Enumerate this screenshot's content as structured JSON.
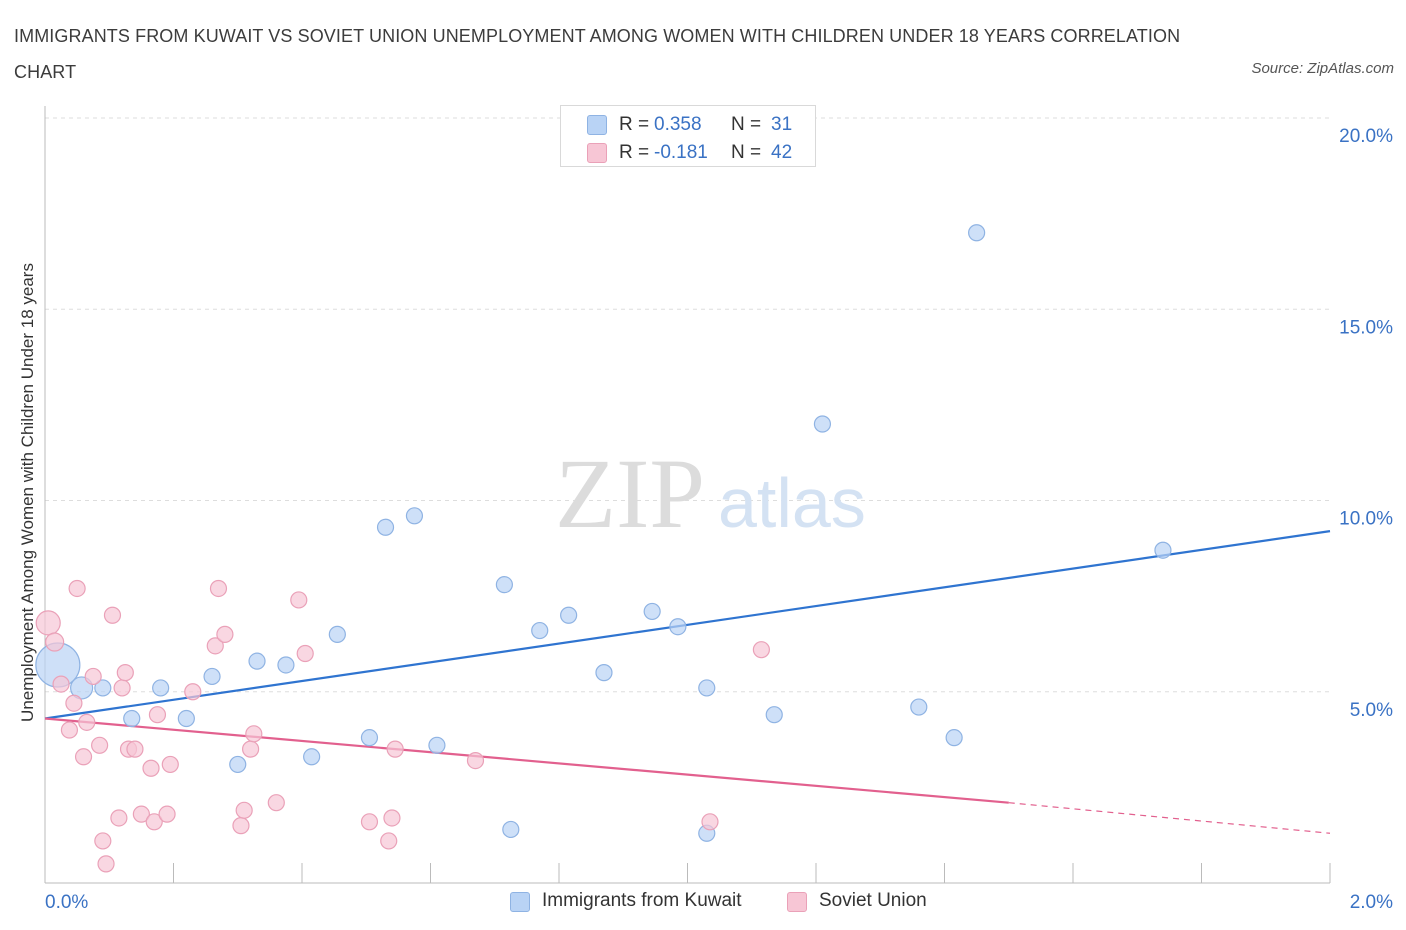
{
  "title": "IMMIGRANTS FROM KUWAIT VS SOVIET UNION UNEMPLOYMENT AMONG WOMEN WITH CHILDREN UNDER 18 YEARS CORRELATION CHART",
  "source": "Source: ZipAtlas.com",
  "watermark": {
    "zip": "ZIP",
    "atlas": "atlas"
  },
  "legend": {
    "r_label": "R =",
    "n_label": "N =",
    "series": [
      {
        "r": "0.358",
        "n": "31"
      },
      {
        "r": "-0.181",
        "n": "42"
      }
    ]
  },
  "colors": {
    "kuwait_fill": "#b9d3f5",
    "kuwait_stroke": "#8fb3e3",
    "kuwait_line": "#2f74d0",
    "soviet_fill": "#f7c6d5",
    "soviet_stroke": "#eaa1b8",
    "soviet_line": "#e2608e",
    "axis_label": "#3a72c4",
    "grid": "#dddddd"
  },
  "chart_data": {
    "type": "scatter",
    "ylabel": "Unemployment Among Women with Children Under 18 years",
    "xlim": [
      0,
      2.0
    ],
    "ylim": [
      0,
      20.0
    ],
    "x_tick_labels": [
      "0.0%",
      "2.0%"
    ],
    "y_ticks": [
      5,
      10,
      15,
      20
    ],
    "y_tick_labels": [
      "5.0%",
      "10.0%",
      "15.0%",
      "20.0%"
    ],
    "grid": true,
    "series": [
      {
        "name": "Immigrants from Kuwait",
        "points": [
          [
            0.02,
            5.7
          ],
          [
            0.057,
            5.1
          ],
          [
            0.09,
            5.1
          ],
          [
            0.135,
            4.3
          ],
          [
            0.18,
            5.1
          ],
          [
            0.22,
            4.3
          ],
          [
            0.26,
            5.4
          ],
          [
            0.3,
            3.1
          ],
          [
            0.33,
            5.8
          ],
          [
            0.375,
            5.7
          ],
          [
            0.415,
            3.3
          ],
          [
            0.455,
            6.5
          ],
          [
            0.505,
            3.8
          ],
          [
            0.53,
            9.3
          ],
          [
            0.575,
            9.6
          ],
          [
            0.61,
            3.6
          ],
          [
            0.715,
            7.8
          ],
          [
            0.725,
            1.4
          ],
          [
            0.77,
            6.6
          ],
          [
            0.815,
            7.0
          ],
          [
            0.87,
            5.5
          ],
          [
            0.945,
            7.1
          ],
          [
            0.985,
            6.7
          ],
          [
            1.03,
            1.3
          ],
          [
            1.03,
            5.1
          ],
          [
            1.135,
            4.4
          ],
          [
            1.21,
            12.0
          ],
          [
            1.36,
            4.6
          ],
          [
            1.415,
            3.8
          ],
          [
            1.45,
            17.0
          ],
          [
            1.74,
            8.7
          ]
        ],
        "sizes": [
          22,
          11,
          8,
          8,
          8,
          8,
          8,
          8,
          8,
          8,
          8,
          8,
          8,
          8,
          8,
          8,
          8,
          8,
          8,
          8,
          8,
          8,
          8,
          8,
          8,
          8,
          8,
          8,
          8,
          8,
          8
        ],
        "trend": {
          "x": [
            0,
            2.0
          ],
          "y": [
            4.3,
            9.2
          ]
        }
      },
      {
        "name": "Soviet Union",
        "points": [
          [
            0.005,
            6.8
          ],
          [
            0.015,
            6.3
          ],
          [
            0.025,
            5.2
          ],
          [
            0.038,
            4.0
          ],
          [
            0.045,
            4.7
          ],
          [
            0.05,
            7.7
          ],
          [
            0.06,
            3.3
          ],
          [
            0.065,
            4.2
          ],
          [
            0.075,
            5.4
          ],
          [
            0.085,
            3.6
          ],
          [
            0.09,
            1.1
          ],
          [
            0.095,
            0.5
          ],
          [
            0.105,
            7.0
          ],
          [
            0.115,
            1.7
          ],
          [
            0.12,
            5.1
          ],
          [
            0.125,
            5.5
          ],
          [
            0.13,
            3.5
          ],
          [
            0.14,
            3.5
          ],
          [
            0.15,
            1.8
          ],
          [
            0.165,
            3.0
          ],
          [
            0.17,
            1.6
          ],
          [
            0.175,
            4.4
          ],
          [
            0.19,
            1.8
          ],
          [
            0.195,
            3.1
          ],
          [
            0.23,
            5.0
          ],
          [
            0.265,
            6.2
          ],
          [
            0.27,
            7.7
          ],
          [
            0.28,
            6.5
          ],
          [
            0.305,
            1.5
          ],
          [
            0.31,
            1.9
          ],
          [
            0.32,
            3.5
          ],
          [
            0.325,
            3.9
          ],
          [
            0.36,
            2.1
          ],
          [
            0.395,
            7.4
          ],
          [
            0.405,
            6.0
          ],
          [
            0.505,
            1.6
          ],
          [
            0.535,
            1.1
          ],
          [
            0.54,
            1.7
          ],
          [
            0.545,
            3.5
          ],
          [
            0.67,
            3.2
          ],
          [
            1.035,
            1.6
          ],
          [
            1.115,
            6.1
          ]
        ],
        "sizes": [
          12,
          9,
          8,
          8,
          8,
          8,
          8,
          8,
          8,
          8,
          8,
          8,
          8,
          8,
          8,
          8,
          8,
          8,
          8,
          8,
          8,
          8,
          8,
          8,
          8,
          8,
          8,
          8,
          8,
          8,
          8,
          8,
          8,
          8,
          8,
          8,
          8,
          8,
          8,
          8,
          8,
          8
        ],
        "trend": {
          "x": [
            0,
            1.5
          ],
          "y": [
            4.3,
            2.1
          ]
        },
        "trend_dashed": {
          "x": [
            1.5,
            2.0
          ],
          "y": [
            2.1,
            1.3
          ]
        }
      }
    ]
  }
}
